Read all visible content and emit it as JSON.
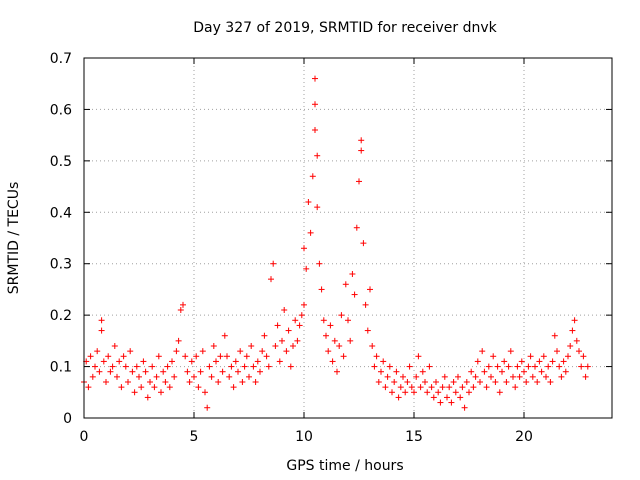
{
  "chart_data": {
    "type": "scatter",
    "title": "Day 327 of 2019, SRMTID for receiver dnvk",
    "xlabel": "GPS time / hours",
    "ylabel": "SRMTID / TECUs",
    "xlim": [
      0,
      24
    ],
    "ylim": [
      0,
      0.7
    ],
    "xticks": [
      0,
      5,
      10,
      15,
      20
    ],
    "xtick_labels": [
      "0",
      "5",
      "10",
      "15",
      "20"
    ],
    "yticks": [
      0,
      0.1,
      0.2,
      0.3,
      0.4,
      0.5,
      0.6,
      0.7
    ],
    "ytick_labels": [
      "0",
      "0.1",
      "0.2",
      "0.3",
      "0.4",
      "0.5",
      "0.6",
      "0.7"
    ],
    "grid": true,
    "marker": "plus",
    "color": "#ff0000",
    "series": [
      {
        "name": "dnvk",
        "points": [
          [
            0.0,
            0.07
          ],
          [
            0.1,
            0.11
          ],
          [
            0.2,
            0.06
          ],
          [
            0.3,
            0.12
          ],
          [
            0.4,
            0.08
          ],
          [
            0.5,
            0.1
          ],
          [
            0.6,
            0.13
          ],
          [
            0.7,
            0.09
          ],
          [
            0.8,
            0.17
          ],
          [
            0.8,
            0.19
          ],
          [
            0.9,
            0.11
          ],
          [
            1.0,
            0.07
          ],
          [
            1.1,
            0.12
          ],
          [
            1.2,
            0.09
          ],
          [
            1.3,
            0.1
          ],
          [
            1.4,
            0.14
          ],
          [
            1.5,
            0.08
          ],
          [
            1.6,
            0.11
          ],
          [
            1.7,
            0.06
          ],
          [
            1.8,
            0.12
          ],
          [
            1.9,
            0.1
          ],
          [
            2.0,
            0.07
          ],
          [
            2.1,
            0.13
          ],
          [
            2.2,
            0.09
          ],
          [
            2.3,
            0.05
          ],
          [
            2.4,
            0.1
          ],
          [
            2.5,
            0.08
          ],
          [
            2.6,
            0.06
          ],
          [
            2.7,
            0.11
          ],
          [
            2.8,
            0.09
          ],
          [
            2.9,
            0.04
          ],
          [
            3.0,
            0.07
          ],
          [
            3.1,
            0.1
          ],
          [
            3.2,
            0.06
          ],
          [
            3.3,
            0.08
          ],
          [
            3.4,
            0.12
          ],
          [
            3.5,
            0.05
          ],
          [
            3.6,
            0.09
          ],
          [
            3.7,
            0.07
          ],
          [
            3.8,
            0.1
          ],
          [
            3.9,
            0.06
          ],
          [
            4.0,
            0.11
          ],
          [
            4.1,
            0.08
          ],
          [
            4.2,
            0.13
          ],
          [
            4.3,
            0.15
          ],
          [
            4.4,
            0.21
          ],
          [
            4.5,
            0.22
          ],
          [
            4.6,
            0.12
          ],
          [
            4.7,
            0.09
          ],
          [
            4.8,
            0.07
          ],
          [
            4.9,
            0.11
          ],
          [
            5.0,
            0.08
          ],
          [
            5.1,
            0.12
          ],
          [
            5.2,
            0.06
          ],
          [
            5.3,
            0.09
          ],
          [
            5.4,
            0.13
          ],
          [
            5.5,
            0.05
          ],
          [
            5.6,
            0.02
          ],
          [
            5.7,
            0.1
          ],
          [
            5.8,
            0.08
          ],
          [
            5.9,
            0.14
          ],
          [
            6.0,
            0.11
          ],
          [
            6.1,
            0.07
          ],
          [
            6.2,
            0.12
          ],
          [
            6.3,
            0.09
          ],
          [
            6.4,
            0.16
          ],
          [
            6.5,
            0.12
          ],
          [
            6.6,
            0.08
          ],
          [
            6.7,
            0.1
          ],
          [
            6.8,
            0.06
          ],
          [
            6.9,
            0.11
          ],
          [
            7.0,
            0.09
          ],
          [
            7.1,
            0.13
          ],
          [
            7.2,
            0.07
          ],
          [
            7.3,
            0.1
          ],
          [
            7.4,
            0.12
          ],
          [
            7.5,
            0.08
          ],
          [
            7.6,
            0.14
          ],
          [
            7.7,
            0.1
          ],
          [
            7.8,
            0.07
          ],
          [
            7.9,
            0.11
          ],
          [
            8.0,
            0.09
          ],
          [
            8.1,
            0.13
          ],
          [
            8.2,
            0.16
          ],
          [
            8.3,
            0.12
          ],
          [
            8.4,
            0.1
          ],
          [
            8.5,
            0.27
          ],
          [
            8.6,
            0.3
          ],
          [
            8.7,
            0.14
          ],
          [
            8.8,
            0.18
          ],
          [
            8.9,
            0.11
          ],
          [
            9.0,
            0.15
          ],
          [
            9.1,
            0.21
          ],
          [
            9.2,
            0.13
          ],
          [
            9.3,
            0.17
          ],
          [
            9.4,
            0.1
          ],
          [
            9.5,
            0.14
          ],
          [
            9.6,
            0.19
          ],
          [
            9.7,
            0.15
          ],
          [
            9.8,
            0.18
          ],
          [
            9.9,
            0.2
          ],
          [
            10.0,
            0.22
          ],
          [
            10.0,
            0.33
          ],
          [
            10.1,
            0.29
          ],
          [
            10.2,
            0.42
          ],
          [
            10.3,
            0.36
          ],
          [
            10.4,
            0.47
          ],
          [
            10.5,
            0.56
          ],
          [
            10.5,
            0.61
          ],
          [
            10.5,
            0.66
          ],
          [
            10.6,
            0.51
          ],
          [
            10.6,
            0.41
          ],
          [
            10.7,
            0.3
          ],
          [
            10.8,
            0.25
          ],
          [
            10.9,
            0.19
          ],
          [
            11.0,
            0.16
          ],
          [
            11.1,
            0.13
          ],
          [
            11.2,
            0.18
          ],
          [
            11.3,
            0.11
          ],
          [
            11.4,
            0.15
          ],
          [
            11.5,
            0.09
          ],
          [
            11.6,
            0.14
          ],
          [
            11.7,
            0.2
          ],
          [
            11.8,
            0.12
          ],
          [
            11.9,
            0.26
          ],
          [
            12.0,
            0.19
          ],
          [
            12.1,
            0.15
          ],
          [
            12.2,
            0.28
          ],
          [
            12.3,
            0.24
          ],
          [
            12.4,
            0.37
          ],
          [
            12.5,
            0.46
          ],
          [
            12.6,
            0.52
          ],
          [
            12.6,
            0.54
          ],
          [
            12.7,
            0.34
          ],
          [
            12.8,
            0.22
          ],
          [
            12.9,
            0.17
          ],
          [
            13.0,
            0.25
          ],
          [
            13.1,
            0.14
          ],
          [
            13.2,
            0.1
          ],
          [
            13.3,
            0.12
          ],
          [
            13.4,
            0.07
          ],
          [
            13.5,
            0.09
          ],
          [
            13.6,
            0.11
          ],
          [
            13.7,
            0.06
          ],
          [
            13.8,
            0.08
          ],
          [
            13.9,
            0.1
          ],
          [
            14.0,
            0.05
          ],
          [
            14.1,
            0.07
          ],
          [
            14.2,
            0.09
          ],
          [
            14.3,
            0.04
          ],
          [
            14.4,
            0.06
          ],
          [
            14.5,
            0.08
          ],
          [
            14.6,
            0.05
          ],
          [
            14.7,
            0.07
          ],
          [
            14.8,
            0.1
          ],
          [
            14.9,
            0.06
          ],
          [
            15.0,
            0.05
          ],
          [
            15.1,
            0.08
          ],
          [
            15.2,
            0.12
          ],
          [
            15.3,
            0.06
          ],
          [
            15.4,
            0.09
          ],
          [
            15.5,
            0.07
          ],
          [
            15.6,
            0.05
          ],
          [
            15.7,
            0.1
          ],
          [
            15.8,
            0.06
          ],
          [
            15.9,
            0.04
          ],
          [
            16.0,
            0.07
          ],
          [
            16.1,
            0.05
          ],
          [
            16.2,
            0.03
          ],
          [
            16.3,
            0.06
          ],
          [
            16.4,
            0.08
          ],
          [
            16.5,
            0.04
          ],
          [
            16.6,
            0.06
          ],
          [
            16.7,
            0.03
          ],
          [
            16.8,
            0.07
          ],
          [
            16.9,
            0.05
          ],
          [
            17.0,
            0.08
          ],
          [
            17.1,
            0.04
          ],
          [
            17.2,
            0.06
          ],
          [
            17.3,
            0.02
          ],
          [
            17.4,
            0.07
          ],
          [
            17.5,
            0.05
          ],
          [
            17.6,
            0.09
          ],
          [
            17.7,
            0.06
          ],
          [
            17.8,
            0.08
          ],
          [
            17.9,
            0.11
          ],
          [
            18.0,
            0.07
          ],
          [
            18.1,
            0.13
          ],
          [
            18.2,
            0.09
          ],
          [
            18.3,
            0.06
          ],
          [
            18.4,
            0.1
          ],
          [
            18.5,
            0.08
          ],
          [
            18.6,
            0.12
          ],
          [
            18.7,
            0.07
          ],
          [
            18.8,
            0.1
          ],
          [
            18.9,
            0.05
          ],
          [
            19.0,
            0.09
          ],
          [
            19.1,
            0.11
          ],
          [
            19.2,
            0.07
          ],
          [
            19.3,
            0.1
          ],
          [
            19.4,
            0.13
          ],
          [
            19.5,
            0.08
          ],
          [
            19.6,
            0.06
          ],
          [
            19.7,
            0.1
          ],
          [
            19.8,
            0.08
          ],
          [
            19.9,
            0.11
          ],
          [
            20.0,
            0.09
          ],
          [
            20.1,
            0.07
          ],
          [
            20.2,
            0.1
          ],
          [
            20.3,
            0.12
          ],
          [
            20.4,
            0.08
          ],
          [
            20.5,
            0.1
          ],
          [
            20.6,
            0.07
          ],
          [
            20.7,
            0.11
          ],
          [
            20.8,
            0.09
          ],
          [
            20.9,
            0.12
          ],
          [
            21.0,
            0.08
          ],
          [
            21.1,
            0.1
          ],
          [
            21.2,
            0.07
          ],
          [
            21.3,
            0.11
          ],
          [
            21.4,
            0.16
          ],
          [
            21.5,
            0.13
          ],
          [
            21.6,
            0.1
          ],
          [
            21.7,
            0.08
          ],
          [
            21.8,
            0.11
          ],
          [
            21.9,
            0.09
          ],
          [
            22.0,
            0.12
          ],
          [
            22.1,
            0.14
          ],
          [
            22.2,
            0.17
          ],
          [
            22.3,
            0.19
          ],
          [
            22.4,
            0.15
          ],
          [
            22.5,
            0.13
          ],
          [
            22.6,
            0.1
          ],
          [
            22.7,
            0.12
          ],
          [
            22.8,
            0.08
          ],
          [
            22.9,
            0.1
          ]
        ]
      }
    ]
  }
}
